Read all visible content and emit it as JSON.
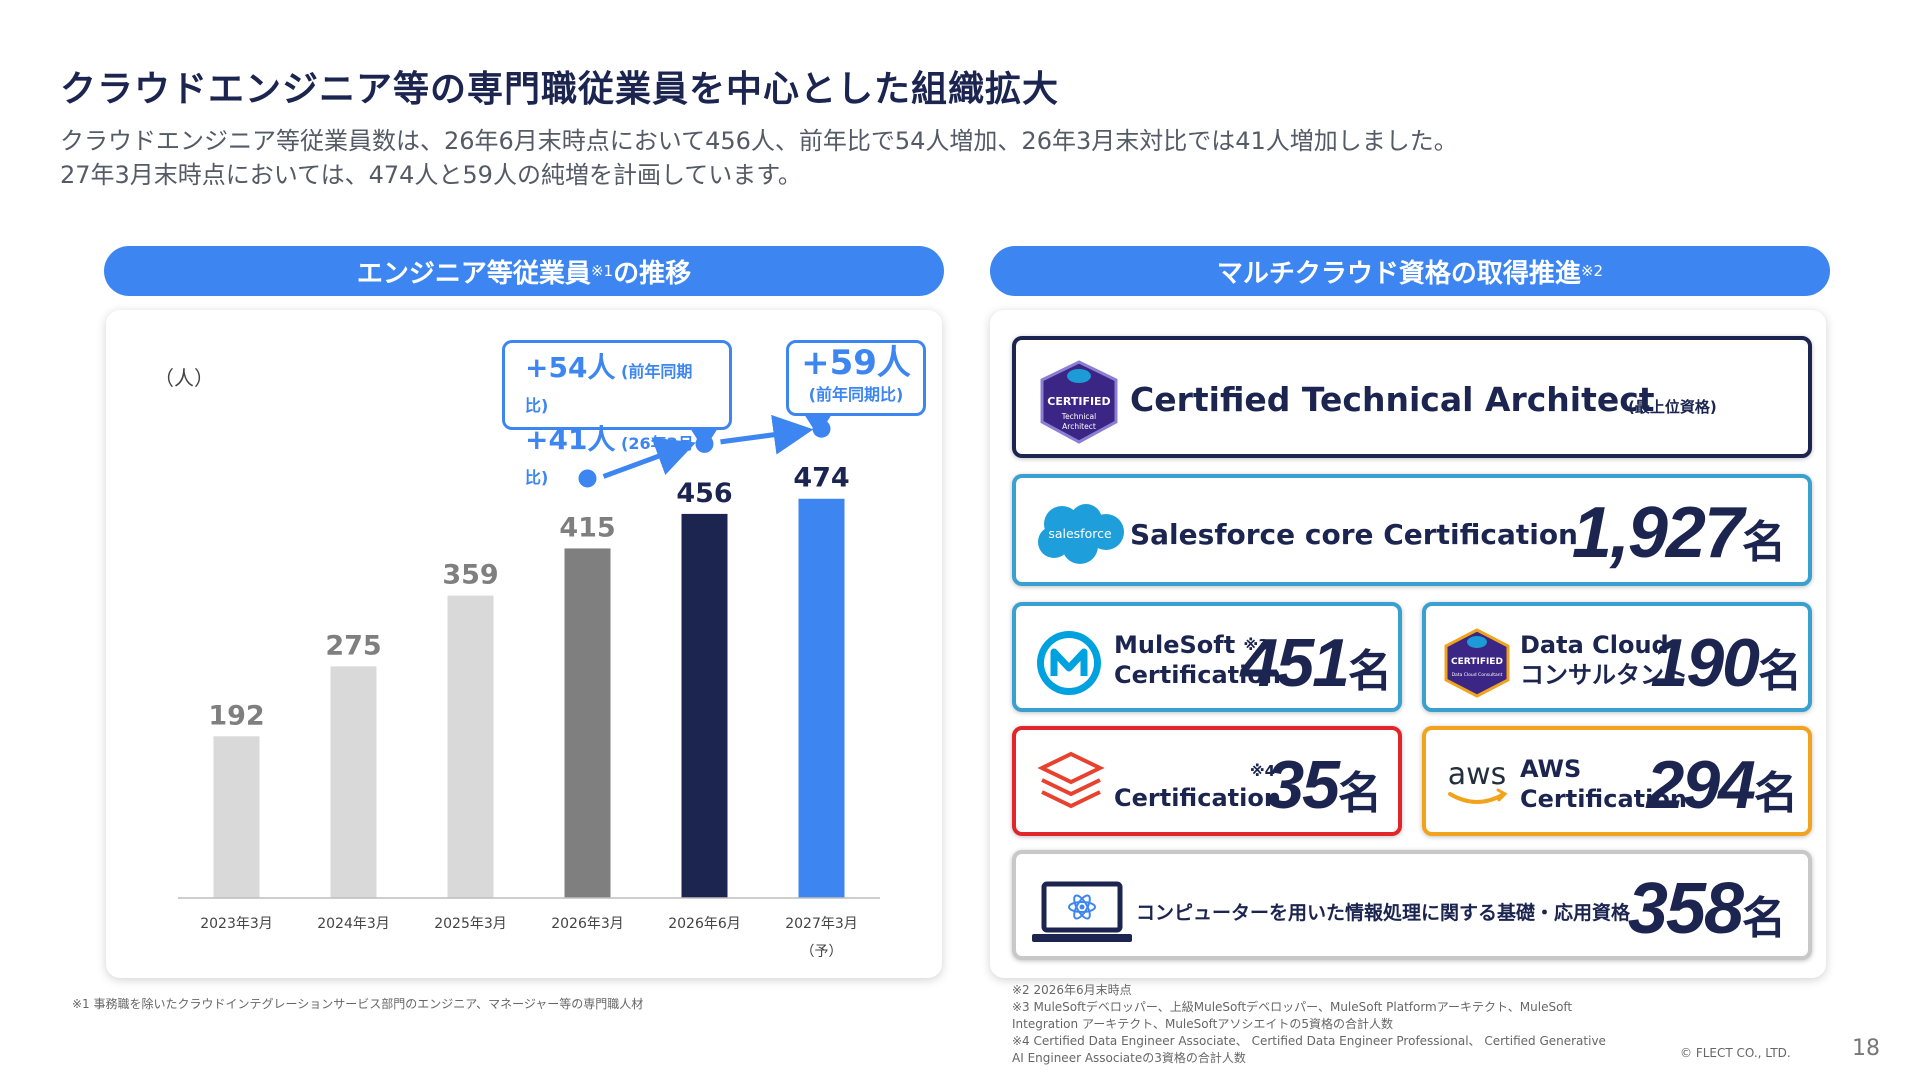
{
  "header": {
    "title": "クラウドエンジニア等の専門職従業員を中心とした組織拡大",
    "subtitle_line1": "クラウドエンジニア等従業員数は、26年6月末時点において456人、前年比で54人増加、26年3月末対比では41人増加しました。",
    "subtitle_line2": "27年3月末時点においては、474人と59人の純増を計画しています。"
  },
  "left_section": {
    "title_main": "エンジニア等従業員",
    "title_note": "※1",
    "title_suffix": "の推移",
    "unit_label": "（人）",
    "callout_a": {
      "line1_value": "+54人",
      "line1_note": "(前年同期比)",
      "line2_value": "+41人",
      "line2_note": "(26年3月比)"
    },
    "callout_b": {
      "value": "+59人",
      "note": "(前年同期比)"
    },
    "footnote": "※1 事務職を除いたクラウドインテグレーションサービス部門のエンジニア、マネージャー等の専門職人材"
  },
  "chart_data": {
    "type": "bar",
    "categories": [
      "2023年3月",
      "2024年3月",
      "2025年3月",
      "2026年3月",
      "2026年6月",
      "2027年3月"
    ],
    "category_sublabels": [
      "",
      "",
      "",
      "",
      "",
      "（予）"
    ],
    "values": [
      192,
      275,
      359,
      415,
      456,
      474
    ],
    "bar_colors": [
      "#d9d9d9",
      "#d9d9d9",
      "#d9d9d9",
      "#7f7f7f",
      "#1b2550",
      "#3d86f2"
    ],
    "label_colors": [
      "#7f7f7f",
      "#7f7f7f",
      "#7f7f7f",
      "#7f7f7f",
      "#1b2550",
      "#1b2550"
    ],
    "ylim": [
      0,
      520
    ]
  },
  "right_section": {
    "title_main": "マルチクラウド資格の取得推進",
    "title_note": "※2",
    "cards": {
      "cta": {
        "badge_text": "CERTIFIED",
        "badge_sub1": "Technical",
        "badge_sub2": "Architect",
        "name": "Certified Technical Architect",
        "note": "(最上位資格)",
        "border": "#1b2550"
      },
      "salesforce": {
        "logo_text": "salesforce",
        "name": "Salesforce core Certification",
        "count": "1,927",
        "unit": "名",
        "border": "#3aa0cf"
      },
      "mulesoft": {
        "name_line1": "MuleSoft",
        "note": "※3",
        "name_line2": "Certification",
        "count": "451",
        "unit": "名",
        "border": "#3aa0cf"
      },
      "datacloud": {
        "badge_text": "CERTIFIED",
        "badge_sub": "Data Cloud Consultant",
        "name_line1": "Data Cloud",
        "name_line2": "コンサルタント",
        "count": "190",
        "unit": "名",
        "border": "#3aa0cf"
      },
      "databricks": {
        "note": "※4",
        "name": "Certification",
        "count": "35",
        "unit": "名",
        "border": "#e0262b"
      },
      "aws": {
        "logo_text": "aws",
        "name_line1": "AWS",
        "name_line2": "Certification",
        "count": "294",
        "unit": "名",
        "border": "#f2a31d"
      },
      "basic": {
        "name": "コンピューターを用いた情報処理に関する基礎・応用資格",
        "count": "358",
        "unit": "名",
        "border": "#c8c8c8"
      }
    },
    "footnotes": [
      "※2 2026年6月末時点",
      "※3 MuleSoftデベロッパー、上級MuleSoftデベロッパー、MuleSoft Platformアーキテクト、MuleSoft",
      "Integration アーキテクト、MuleSoftアソシエイトの5資格の合計人数",
      "※4  Certified Data Engineer Associate、 Certified Data Engineer Professional、 Certified Generative",
      "AI Engineer Associateの3資格の合計人数"
    ]
  },
  "footer": {
    "copyright": "© FLECT CO., LTD.",
    "page_number": "18"
  }
}
